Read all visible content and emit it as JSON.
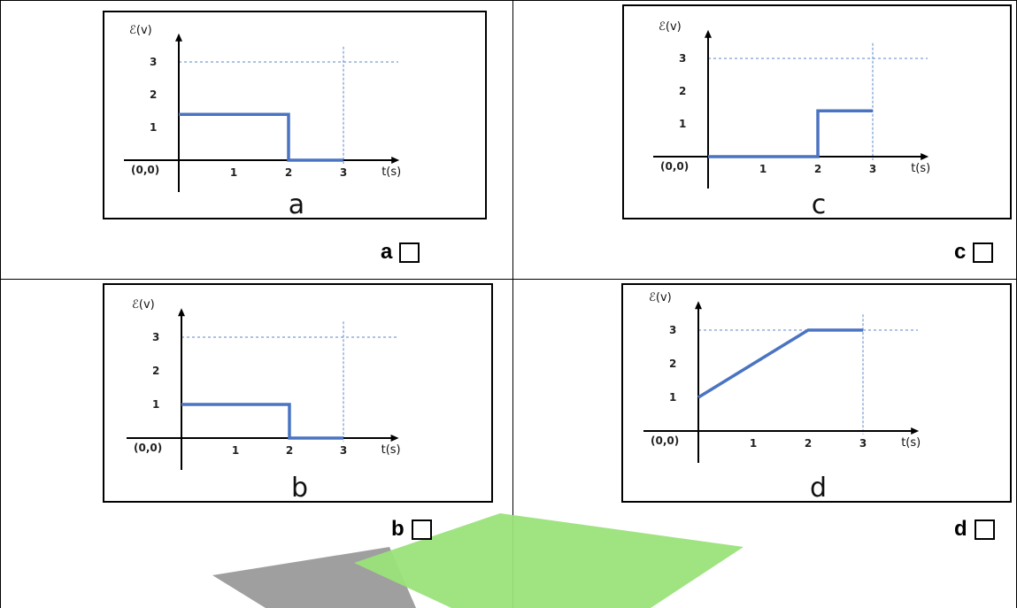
{
  "colors": {
    "trace": "#4a74c2",
    "guide": "#5b86c9",
    "axis": "#000000",
    "watermark_green": "#9be27a",
    "watermark_gray": "#9a9a9a"
  },
  "chart_data": [
    {
      "id": "a",
      "type": "line",
      "panel_letter": "a",
      "answer_label": "a",
      "ylabel": "ℰ(v)",
      "xlabel": "t(s)",
      "origin_label": "(0,0)",
      "x_ticks": [
        "1",
        "2",
        "3"
      ],
      "y_ticks": [
        "1",
        "2",
        "3"
      ],
      "xlim": [
        0,
        3.6
      ],
      "ylim": [
        0,
        3.6
      ],
      "guide_y": 3,
      "guide_x": 3,
      "x": [
        0,
        2,
        2,
        3
      ],
      "y": [
        1.4,
        1.4,
        0,
        0
      ]
    },
    {
      "id": "c",
      "type": "line",
      "panel_letter": "c",
      "answer_label": "c",
      "ylabel": "ℰ(v)",
      "xlabel": "t(s)",
      "origin_label": "(0,0)",
      "x_ticks": [
        "1",
        "2",
        "3"
      ],
      "y_ticks": [
        "1",
        "2",
        "3"
      ],
      "xlim": [
        0,
        3.6
      ],
      "ylim": [
        0,
        3.6
      ],
      "guide_y": 3,
      "guide_x": 3,
      "x": [
        0,
        2,
        2,
        3
      ],
      "y": [
        0,
        0,
        1.4,
        1.4
      ]
    },
    {
      "id": "b",
      "type": "line",
      "panel_letter": "b",
      "answer_label": "b",
      "ylabel": "ℰ(v)",
      "xlabel": "t(s)",
      "origin_label": "(0,0)",
      "x_ticks": [
        "1",
        "2",
        "3"
      ],
      "y_ticks": [
        "1",
        "2",
        "3"
      ],
      "xlim": [
        0,
        3.6
      ],
      "ylim": [
        0,
        3.6
      ],
      "guide_y": 3,
      "guide_x": 3,
      "x": [
        0,
        2,
        2,
        3
      ],
      "y": [
        1,
        1,
        0,
        0
      ]
    },
    {
      "id": "d",
      "type": "line",
      "panel_letter": "d",
      "answer_label": "d",
      "ylabel": "ℰ(v)",
      "xlabel": "t(s)",
      "origin_label": "(0,0)",
      "x_ticks": [
        "1",
        "2",
        "3"
      ],
      "y_ticks": [
        "1",
        "2",
        "3"
      ],
      "xlim": [
        0,
        3.6
      ],
      "ylim": [
        0,
        3.6
      ],
      "guide_y": 3,
      "guide_x": 3,
      "x": [
        0,
        2,
        3
      ],
      "y": [
        1,
        3,
        3
      ]
    }
  ]
}
